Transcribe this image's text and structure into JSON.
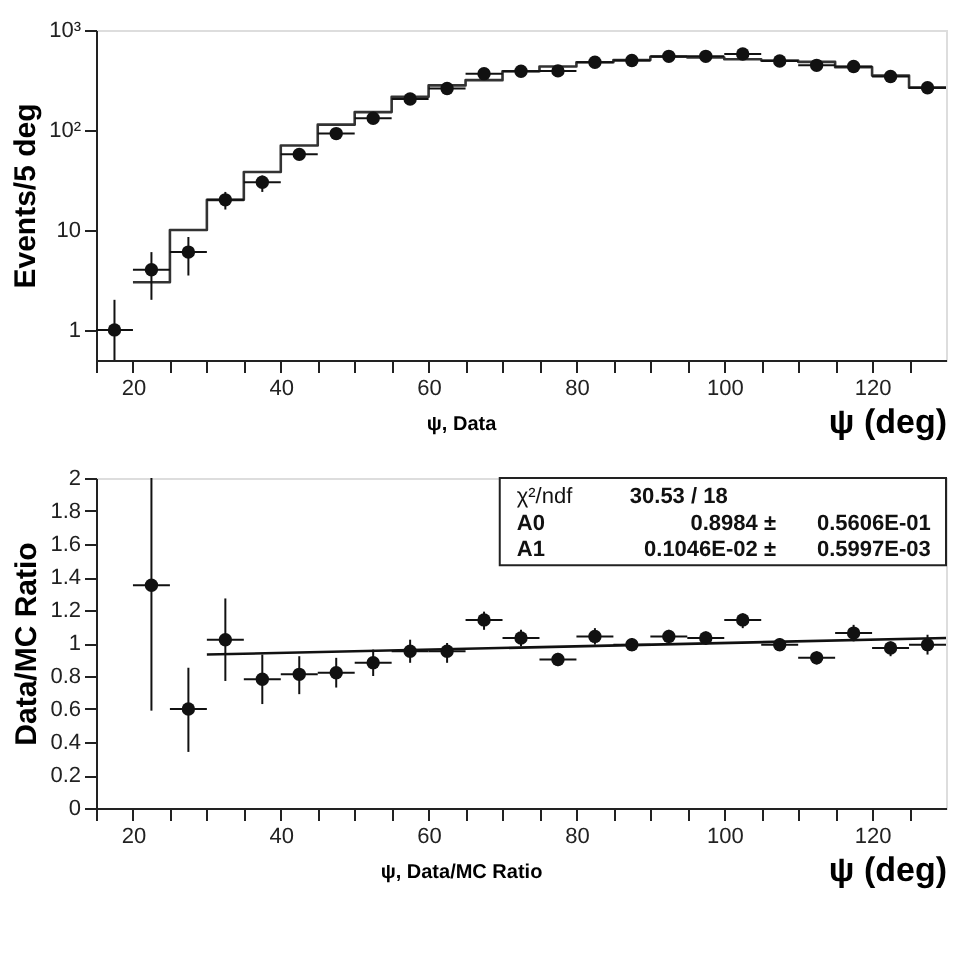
{
  "chart_data": [
    {
      "type": "histogram",
      "ylabel": "Events/5 deg",
      "xlabel": "ψ (deg)",
      "annotations": [
        "ψ, Data"
      ],
      "bins": [
        20,
        25,
        30,
        35,
        40,
        45,
        50,
        55,
        60,
        65,
        70,
        75,
        80,
        85,
        90,
        95,
        100,
        105,
        110,
        115,
        120,
        125,
        130
      ],
      "values": [
        3,
        10,
        20,
        38,
        70,
        113,
        151,
        215,
        279,
        315,
        387,
        432,
        475,
        500,
        540,
        530,
        510,
        495,
        480,
        425,
        350,
        265
      ],
      "color": "#333333",
      "series": [
        {
          "type": "scatter",
          "marker": "circle",
          "color": "#111111",
          "x": [
            17.5,
            22.5,
            27.5,
            32.5,
            37.5,
            42.5,
            47.5,
            52.5,
            57.5,
            62.5,
            67.5,
            72.5,
            77.5,
            82.5,
            87.5,
            92.5,
            97.5,
            102.5,
            107.5,
            112.5,
            117.5,
            122.5,
            127.5
          ],
          "values": [
            1,
            4,
            6,
            20,
            30,
            57,
            92,
            131,
            204,
            260,
            366,
            387,
            390,
            475,
            495,
            545,
            545,
            575,
            490,
            443,
            432,
            342,
            264
          ],
          "errors": [
            [
              0.5,
              2
            ],
            [
              2,
              6
            ],
            [
              3.5,
              8.5
            ],
            [
              16,
              24
            ],
            [
              24,
              35
            ],
            null,
            null,
            null,
            null,
            null,
            null,
            null,
            null,
            null,
            null,
            null,
            null,
            null,
            null,
            null,
            null,
            null,
            null
          ],
          "xerrors": [
            2.5,
            2.5,
            2.5,
            2.5,
            2.5,
            2.5,
            2.5,
            2.5,
            2.5,
            2.5,
            2.5,
            2.5,
            2.5,
            2.5,
            2.5,
            2.5,
            2.5,
            2.5,
            2.5,
            2.5,
            2.5,
            2.5,
            2.5
          ]
        }
      ],
      "log": "y",
      "xlim": [
        15,
        130
      ],
      "xticks": [
        {
          "value": 15,
          "label": null
        },
        20,
        {
          "value": 25,
          "label": null
        },
        {
          "value": 30,
          "label": null
        },
        {
          "value": 35,
          "label": null
        },
        40,
        {
          "value": 45,
          "label": null
        },
        {
          "value": 50,
          "label": null
        },
        {
          "value": 55,
          "label": null
        },
        60,
        {
          "value": 65,
          "label": null
        },
        {
          "value": 70,
          "label": null
        },
        {
          "value": 75,
          "label": null
        },
        80,
        {
          "value": 85,
          "label": null
        },
        {
          "value": 90,
          "label": null
        },
        {
          "value": 95,
          "label": null
        },
        100,
        {
          "value": 105,
          "label": null
        },
        {
          "value": 110,
          "label": null
        },
        {
          "value": 115,
          "label": null
        },
        120,
        {
          "value": 125,
          "label": null
        }
      ],
      "ylim": [
        0.5,
        1000
      ],
      "yticks": [
        1,
        10,
        {
          "value": 100,
          "label": "10²"
        },
        {
          "value": 1000,
          "label": "10³"
        }
      ],
      "grid": false
    },
    {
      "type": "scatter",
      "ylabel": "Data/MC Ratio",
      "xlabel": "ψ (deg)",
      "annotations": [
        "ψ, Data/MC Ratio",
        "χ²/ndf",
        "30.53   /   18",
        "A0",
        "0.8984 ±",
        "0.5606E-01",
        "A1",
        "0.1046E-02 ±",
        "0.5997E-03"
      ],
      "series": [
        {
          "type": "scatter",
          "marker": "circle",
          "color": "#111111",
          "x": [
            22.5,
            27.5,
            32.5,
            37.5,
            42.5,
            47.5,
            52.5,
            57.5,
            62.5,
            67.5,
            72.5,
            77.5,
            82.5,
            87.5,
            92.5,
            97.5,
            102.5,
            107.5,
            112.5,
            117.5,
            122.5,
            127.5
          ],
          "values": [
            1.35,
            0.6,
            1.02,
            0.78,
            0.81,
            0.82,
            0.88,
            0.95,
            0.95,
            1.14,
            1.03,
            0.9,
            1.04,
            0.99,
            1.04,
            1.03,
            1.14,
            0.99,
            0.91,
            1.06,
            0.97,
            0.99
          ],
          "errors": [
            [
              0.59,
              2
            ],
            [
              0.34,
              0.85
            ],
            [
              0.77,
              1.27
            ],
            [
              0.63,
              0.93
            ],
            [
              0.69,
              0.92
            ],
            [
              0.73,
              0.91
            ],
            [
              0.8,
              0.96
            ],
            [
              0.88,
              1.02
            ],
            [
              0.88,
              1.0
            ],
            [
              1.08,
              1.19
            ],
            [
              0.98,
              1.08
            ],
            [
              0.86,
              0.94
            ],
            [
              0.99,
              1.09
            ],
            [
              0.95,
              1.03
            ],
            [
              0.99,
              1.08
            ],
            [
              0.99,
              1.07
            ],
            [
              1.09,
              1.18
            ],
            [
              0.95,
              1.03
            ],
            [
              0.87,
              0.95
            ],
            [
              1.01,
              1.11
            ],
            [
              0.92,
              1.01
            ],
            [
              0.93,
              1.05
            ]
          ],
          "xerrors": [
            2.5,
            2.5,
            2.5,
            2.5,
            2.5,
            2.5,
            2.5,
            2.5,
            2.5,
            2.5,
            2.5,
            2.5,
            2.5,
            2.5,
            2.5,
            2.5,
            2.5,
            2.5,
            2.5,
            2.5,
            2.5,
            2.5
          ]
        },
        {
          "type": "line",
          "color": "#111111",
          "x": [
            30,
            130
          ],
          "values": [
            0.93,
            1.03
          ]
        }
      ],
      "xlim": [
        15,
        130
      ],
      "xticks": [
        {
          "value": 15,
          "label": null
        },
        20,
        {
          "value": 25,
          "label": null
        },
        {
          "value": 30,
          "label": null
        },
        {
          "value": 35,
          "label": null
        },
        40,
        {
          "value": 45,
          "label": null
        },
        {
          "value": 50,
          "label": null
        },
        {
          "value": 55,
          "label": null
        },
        60,
        {
          "value": 65,
          "label": null
        },
        {
          "value": 70,
          "label": null
        },
        {
          "value": 75,
          "label": null
        },
        80,
        {
          "value": 85,
          "label": null
        },
        {
          "value": 90,
          "label": null
        },
        {
          "value": 95,
          "label": null
        },
        100,
        {
          "value": 105,
          "label": null
        },
        {
          "value": 110,
          "label": null
        },
        {
          "value": 115,
          "label": null
        },
        120,
        {
          "value": 125,
          "label": null
        }
      ],
      "ylim": [
        0,
        2
      ],
      "yticks": [
        0,
        0.2,
        0.4,
        0.6,
        0.8,
        1,
        1.2,
        1.4,
        1.6,
        1.8,
        2
      ],
      "grid": false
    }
  ]
}
